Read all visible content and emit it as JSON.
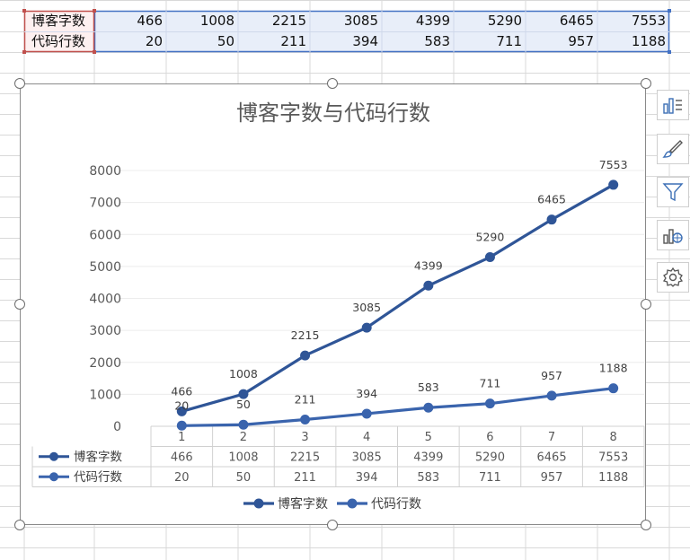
{
  "spreadsheet": {
    "rows": [
      {
        "label": "博客字数",
        "values": [
          "466",
          "1008",
          "2215",
          "3085",
          "4399",
          "5290",
          "6465",
          "7553"
        ]
      },
      {
        "label": "代码行数",
        "values": [
          "20",
          "50",
          "211",
          "394",
          "583",
          "711",
          "957",
          "1188"
        ]
      }
    ]
  },
  "chart_data": {
    "type": "line",
    "title": "博客字数与代码行数",
    "categories": [
      "1",
      "2",
      "3",
      "4",
      "5",
      "6",
      "7",
      "8"
    ],
    "series": [
      {
        "name": "博客字数",
        "values": [
          466,
          1008,
          2215,
          3085,
          4399,
          5290,
          6465,
          7553
        ],
        "color": "#2f5597"
      },
      {
        "name": "代码行数",
        "values": [
          20,
          50,
          211,
          394,
          583,
          711,
          957,
          1188
        ],
        "color": "#3a64ad"
      }
    ],
    "yticks": [
      "0",
      "1000",
      "2000",
      "3000",
      "4000",
      "5000",
      "6000",
      "7000",
      "8000"
    ],
    "ylim": [
      0,
      8000
    ],
    "grid": true,
    "legend": "bottom",
    "data_table": true
  },
  "side_toolbar": {
    "icons": [
      "chart-elements-icon",
      "chart-styles-icon",
      "chart-filters-icon",
      "chart-type-icon",
      "settings-icon"
    ]
  }
}
